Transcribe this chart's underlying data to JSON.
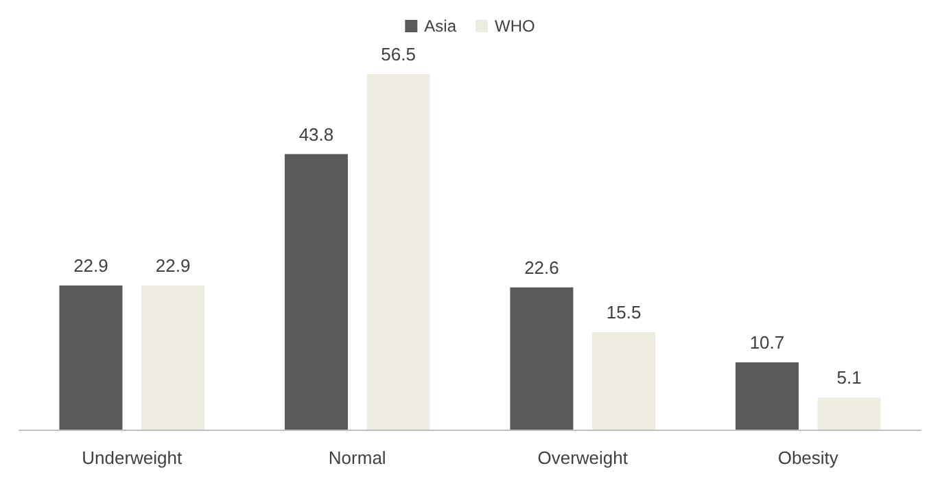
{
  "chart_data": {
    "type": "bar",
    "categories": [
      "Underweight",
      "Normal",
      "Overweight",
      "Obesity"
    ],
    "series": [
      {
        "name": "Asia",
        "color": "#595959",
        "values": [
          22.9,
          43.8,
          22.6,
          10.7
        ]
      },
      {
        "name": "WHO",
        "color": "#eeece1",
        "values": [
          22.9,
          56.5,
          15.5,
          5.1
        ]
      }
    ],
    "data_labels": true,
    "legend": "top",
    "grid": false
  }
}
